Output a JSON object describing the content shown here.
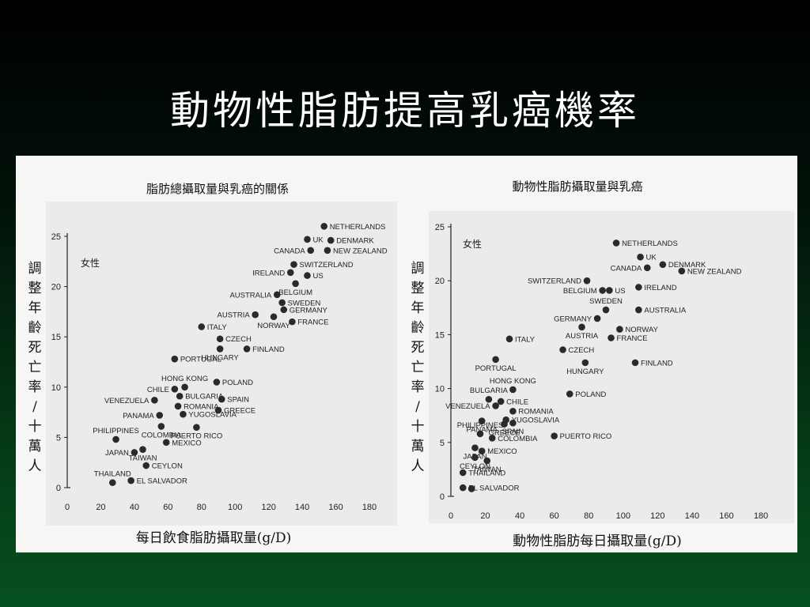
{
  "slide": {
    "title": "動物性脂肪提高乳癌機率"
  },
  "chart_data": [
    {
      "type": "scatter",
      "title": "脂肪總攝取量與乳癌的關係",
      "xlabel": "每日飲食脂肪攝取量(g/D)",
      "ylabel": "調整年齡死亡率/十萬人",
      "inset_label": "女性",
      "xlim": [
        0,
        180
      ],
      "ylim": [
        0,
        25
      ],
      "xticks": [
        0,
        20,
        40,
        60,
        80,
        100,
        120,
        140,
        160,
        180
      ],
      "yticks": [
        0,
        5,
        10,
        15,
        20,
        25
      ],
      "points": [
        {
          "label": "NETHERLANDS",
          "x": 153,
          "y": 26.0,
          "side": "right"
        },
        {
          "label": "UK",
          "x": 143,
          "y": 24.7,
          "side": "right"
        },
        {
          "label": "DENMARK",
          "x": 157,
          "y": 24.6,
          "side": "right"
        },
        {
          "label": "CANADA",
          "x": 145,
          "y": 23.6,
          "side": "left"
        },
        {
          "label": "NEW ZEALAND",
          "x": 155,
          "y": 23.6,
          "side": "right"
        },
        {
          "label": "SWITZERLAND",
          "x": 135,
          "y": 22.2,
          "side": "right"
        },
        {
          "label": "IRELAND",
          "x": 133,
          "y": 21.4,
          "side": "left"
        },
        {
          "label": "US",
          "x": 143,
          "y": 21.1,
          "side": "right"
        },
        {
          "label": "BELGIUM",
          "x": 136,
          "y": 20.3,
          "side": "below"
        },
        {
          "label": "AUSTRALIA",
          "x": 125,
          "y": 19.2,
          "side": "left"
        },
        {
          "label": "SWEDEN",
          "x": 128,
          "y": 18.4,
          "side": "right"
        },
        {
          "label": "GERMANY",
          "x": 129,
          "y": 17.7,
          "side": "right"
        },
        {
          "label": "AUSTRIA",
          "x": 112,
          "y": 17.2,
          "side": "left"
        },
        {
          "label": "NORWAY",
          "x": 123,
          "y": 17.0,
          "side": "below"
        },
        {
          "label": "FRANCE",
          "x": 134,
          "y": 16.5,
          "side": "right"
        },
        {
          "label": "ITALY",
          "x": 80,
          "y": 16.0,
          "side": "right"
        },
        {
          "label": "CZECH",
          "x": 91,
          "y": 14.8,
          "side": "right"
        },
        {
          "label": "FINLAND",
          "x": 107,
          "y": 13.8,
          "side": "right"
        },
        {
          "label": "HUNGARY",
          "x": 91,
          "y": 13.8,
          "side": "below"
        },
        {
          "label": "PORTUGAL",
          "x": 64,
          "y": 12.8,
          "side": "right"
        },
        {
          "label": "POLAND",
          "x": 89,
          "y": 10.5,
          "side": "right"
        },
        {
          "label": "HONG KONG",
          "x": 70,
          "y": 10.0,
          "side": "above"
        },
        {
          "label": "CHILE",
          "x": 64,
          "y": 9.8,
          "side": "left"
        },
        {
          "label": "BULGARIA",
          "x": 67,
          "y": 9.1,
          "side": "right"
        },
        {
          "label": "VENEZUELA",
          "x": 52,
          "y": 8.7,
          "side": "left"
        },
        {
          "label": "SPAIN",
          "x": 92,
          "y": 8.8,
          "side": "right"
        },
        {
          "label": "ROMANIA",
          "x": 66,
          "y": 8.1,
          "side": "right"
        },
        {
          "label": "GREECE",
          "x": 90,
          "y": 7.7,
          "side": "right"
        },
        {
          "label": "PANAMA",
          "x": 55,
          "y": 7.2,
          "side": "left"
        },
        {
          "label": "YUGOSLAVIA",
          "x": 69,
          "y": 7.3,
          "side": "right"
        },
        {
          "label": "PHILIPPINES",
          "x": 29,
          "y": 4.8,
          "side": "above"
        },
        {
          "label": "COLOMBIA",
          "x": 56,
          "y": 6.1,
          "side": "below"
        },
        {
          "label": "PUERTO RICO",
          "x": 77,
          "y": 6.0,
          "side": "below"
        },
        {
          "label": "MEXICO",
          "x": 59,
          "y": 4.5,
          "side": "right"
        },
        {
          "label": "JAPAN",
          "x": 40,
          "y": 3.5,
          "side": "left"
        },
        {
          "label": "TAIWAN",
          "x": 45,
          "y": 3.8,
          "side": "below"
        },
        {
          "label": "CEYLON",
          "x": 47,
          "y": 2.2,
          "side": "right"
        },
        {
          "label": "THAILAND",
          "x": 27,
          "y": 0.5,
          "side": "above"
        },
        {
          "label": "EL SALVADOR",
          "x": 38,
          "y": 0.7,
          "side": "right"
        }
      ]
    },
    {
      "type": "scatter",
      "title": "動物性脂肪攝取量與乳癌",
      "xlabel": "動物性脂肪每日攝取量(g/D)",
      "ylabel": "調整年齡死亡率/十萬人",
      "inset_label": "女性",
      "xlim": [
        0,
        180
      ],
      "ylim": [
        0,
        25
      ],
      "xticks": [
        0,
        20,
        40,
        60,
        80,
        100,
        120,
        140,
        160,
        180
      ],
      "yticks": [
        0,
        5,
        10,
        15,
        20,
        25
      ],
      "points": [
        {
          "label": "NETHERLANDS",
          "x": 96,
          "y": 23.5,
          "side": "right"
        },
        {
          "label": "UK",
          "x": 110,
          "y": 22.2,
          "side": "right"
        },
        {
          "label": "DENMARK",
          "x": 123,
          "y": 21.5,
          "side": "right"
        },
        {
          "label": "CANADA",
          "x": 114,
          "y": 21.2,
          "side": "left"
        },
        {
          "label": "NEW ZEALAND",
          "x": 134,
          "y": 20.9,
          "side": "right"
        },
        {
          "label": "SWITZERLAND",
          "x": 79,
          "y": 20.0,
          "side": "left"
        },
        {
          "label": "IRELAND",
          "x": 109,
          "y": 19.4,
          "side": "right"
        },
        {
          "label": "BELGIUM",
          "x": 88,
          "y": 19.1,
          "side": "left"
        },
        {
          "label": "US",
          "x": 92,
          "y": 19.1,
          "side": "right"
        },
        {
          "label": "SWEDEN",
          "x": 90,
          "y": 17.3,
          "side": "above"
        },
        {
          "label": "AUSTRALIA",
          "x": 109,
          "y": 17.3,
          "side": "right"
        },
        {
          "label": "GERMANY",
          "x": 85,
          "y": 16.5,
          "side": "left"
        },
        {
          "label": "NORWAY",
          "x": 98,
          "y": 15.5,
          "side": "right"
        },
        {
          "label": "AUSTRIA",
          "x": 76,
          "y": 15.7,
          "side": "below"
        },
        {
          "label": "FRANCE",
          "x": 93,
          "y": 14.7,
          "side": "right"
        },
        {
          "label": "ITALY",
          "x": 34,
          "y": 14.6,
          "side": "right"
        },
        {
          "label": "CZECH",
          "x": 65,
          "y": 13.6,
          "side": "right"
        },
        {
          "label": "PORTUGAL",
          "x": 26,
          "y": 12.7,
          "side": "below"
        },
        {
          "label": "HUNGARY",
          "x": 78,
          "y": 12.4,
          "side": "below"
        },
        {
          "label": "FINLAND",
          "x": 107,
          "y": 12.4,
          "side": "right"
        },
        {
          "label": "HONG KONG",
          "x": 36,
          "y": 9.9,
          "side": "above"
        },
        {
          "label": "BULGARIA",
          "x": 22,
          "y": 9.0,
          "side": "above"
        },
        {
          "label": "CHILE",
          "x": 29,
          "y": 8.8,
          "side": "right"
        },
        {
          "label": "POLAND",
          "x": 69,
          "y": 9.5,
          "side": "right"
        },
        {
          "label": "VENEZUELA",
          "x": 26,
          "y": 8.4,
          "side": "left"
        },
        {
          "label": "ROMANIA",
          "x": 36,
          "y": 7.9,
          "side": "right"
        },
        {
          "label": "YUGOSLAVIA",
          "x": 32,
          "y": 7.1,
          "side": "right"
        },
        {
          "label": "PANAMA",
          "x": 18,
          "y": 7.0,
          "side": "below"
        },
        {
          "label": "GREECE",
          "x": 31,
          "y": 6.7,
          "side": "below"
        },
        {
          "label": "SPAIN",
          "x": 36,
          "y": 6.8,
          "side": "below"
        },
        {
          "label": "PHILIPPINES",
          "x": 17,
          "y": 5.8,
          "side": "above"
        },
        {
          "label": "COLOMBIA",
          "x": 24,
          "y": 5.4,
          "side": "right"
        },
        {
          "label": "PUERTO RICO",
          "x": 60,
          "y": 5.6,
          "side": "right"
        },
        {
          "label": "JAPAN",
          "x": 14,
          "y": 4.5,
          "side": "below"
        },
        {
          "label": "MEXICO",
          "x": 18,
          "y": 4.2,
          "side": "right"
        },
        {
          "label": "CEYLON",
          "x": 14,
          "y": 3.6,
          "side": "below"
        },
        {
          "label": "TAIWAN",
          "x": 21,
          "y": 3.3,
          "side": "below"
        },
        {
          "label": "THAILAND",
          "x": 7,
          "y": 2.2,
          "side": "right"
        },
        {
          "label": "EL SALVADOR",
          "x": 7,
          "y": 0.8,
          "side": "right"
        },
        {
          "label": "",
          "x": 12,
          "y": 0.7,
          "side": "none"
        }
      ]
    }
  ]
}
